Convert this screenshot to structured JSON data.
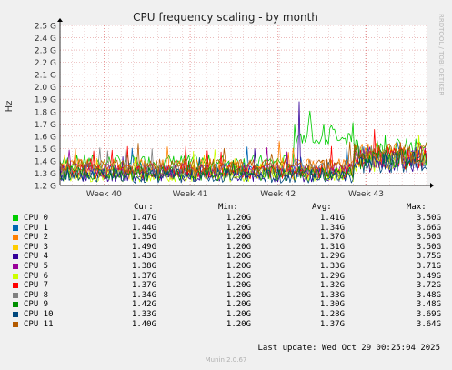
{
  "chart_data": {
    "type": "line",
    "title": "CPU frequency scaling - by month",
    "ylabel": "Hz",
    "watermark": "RRDTOOL / TOBI OETIKER",
    "y_ticks": [
      "1.2 G",
      "1.3 G",
      "1.4 G",
      "1.5 G",
      "1.6 G",
      "1.7 G",
      "1.8 G",
      "1.9 G",
      "2.0 G",
      "2.1 G",
      "2.2 G",
      "2.3 G",
      "2.4 G",
      "2.5 G"
    ],
    "ylim": [
      1.2,
      2.5
    ],
    "x_ticks": [
      "Week 40",
      "Week 41",
      "Week 42",
      "Week 43"
    ],
    "x_tick_positions": [
      0.12,
      0.355,
      0.595,
      0.835
    ],
    "xlim": [
      0,
      1
    ],
    "grid": true,
    "series": [
      {
        "name": "CPU 0",
        "color": "#00cc00",
        "cur": "1.47G",
        "min": "1.20G",
        "avg": "1.41G",
        "max": "3.50G"
      },
      {
        "name": "CPU 1",
        "color": "#0066b3",
        "cur": "1.44G",
        "min": "1.20G",
        "avg": "1.34G",
        "max": "3.66G"
      },
      {
        "name": "CPU 2",
        "color": "#ff8000",
        "cur": "1.35G",
        "min": "1.20G",
        "avg": "1.37G",
        "max": "3.50G"
      },
      {
        "name": "CPU 3",
        "color": "#ffcc00",
        "cur": "1.49G",
        "min": "1.20G",
        "avg": "1.31G",
        "max": "3.50G"
      },
      {
        "name": "CPU 4",
        "color": "#330099",
        "cur": "1.43G",
        "min": "1.20G",
        "avg": "1.29G",
        "max": "3.75G"
      },
      {
        "name": "CPU 5",
        "color": "#990099",
        "cur": "1.38G",
        "min": "1.20G",
        "avg": "1.33G",
        "max": "3.71G"
      },
      {
        "name": "CPU 6",
        "color": "#ccff00",
        "cur": "1.37G",
        "min": "1.20G",
        "avg": "1.29G",
        "max": "3.49G"
      },
      {
        "name": "CPU 7",
        "color": "#ff0000",
        "cur": "1.37G",
        "min": "1.20G",
        "avg": "1.32G",
        "max": "3.72G"
      },
      {
        "name": "CPU 8",
        "color": "#808080",
        "cur": "1.34G",
        "min": "1.20G",
        "avg": "1.33G",
        "max": "3.48G"
      },
      {
        "name": "CPU 9",
        "color": "#008f00",
        "cur": "1.42G",
        "min": "1.20G",
        "avg": "1.30G",
        "max": "3.48G"
      },
      {
        "name": "CPU 10",
        "color": "#00487d",
        "cur": "1.33G",
        "min": "1.20G",
        "avg": "1.28G",
        "max": "3.69G"
      },
      {
        "name": "CPU 11",
        "color": "#b35a00",
        "cur": "1.40G",
        "min": "1.20G",
        "avg": "1.37G",
        "max": "3.64G"
      }
    ]
  },
  "legend": {
    "cur_label": "Cur:",
    "min_label": "Min:",
    "avg_label": "Avg:",
    "max_label": "Max:"
  },
  "footer": {
    "last_update": "Last update: Wed Oct 29 00:25:04 2025",
    "munin_version": "Munin 2.0.67"
  }
}
